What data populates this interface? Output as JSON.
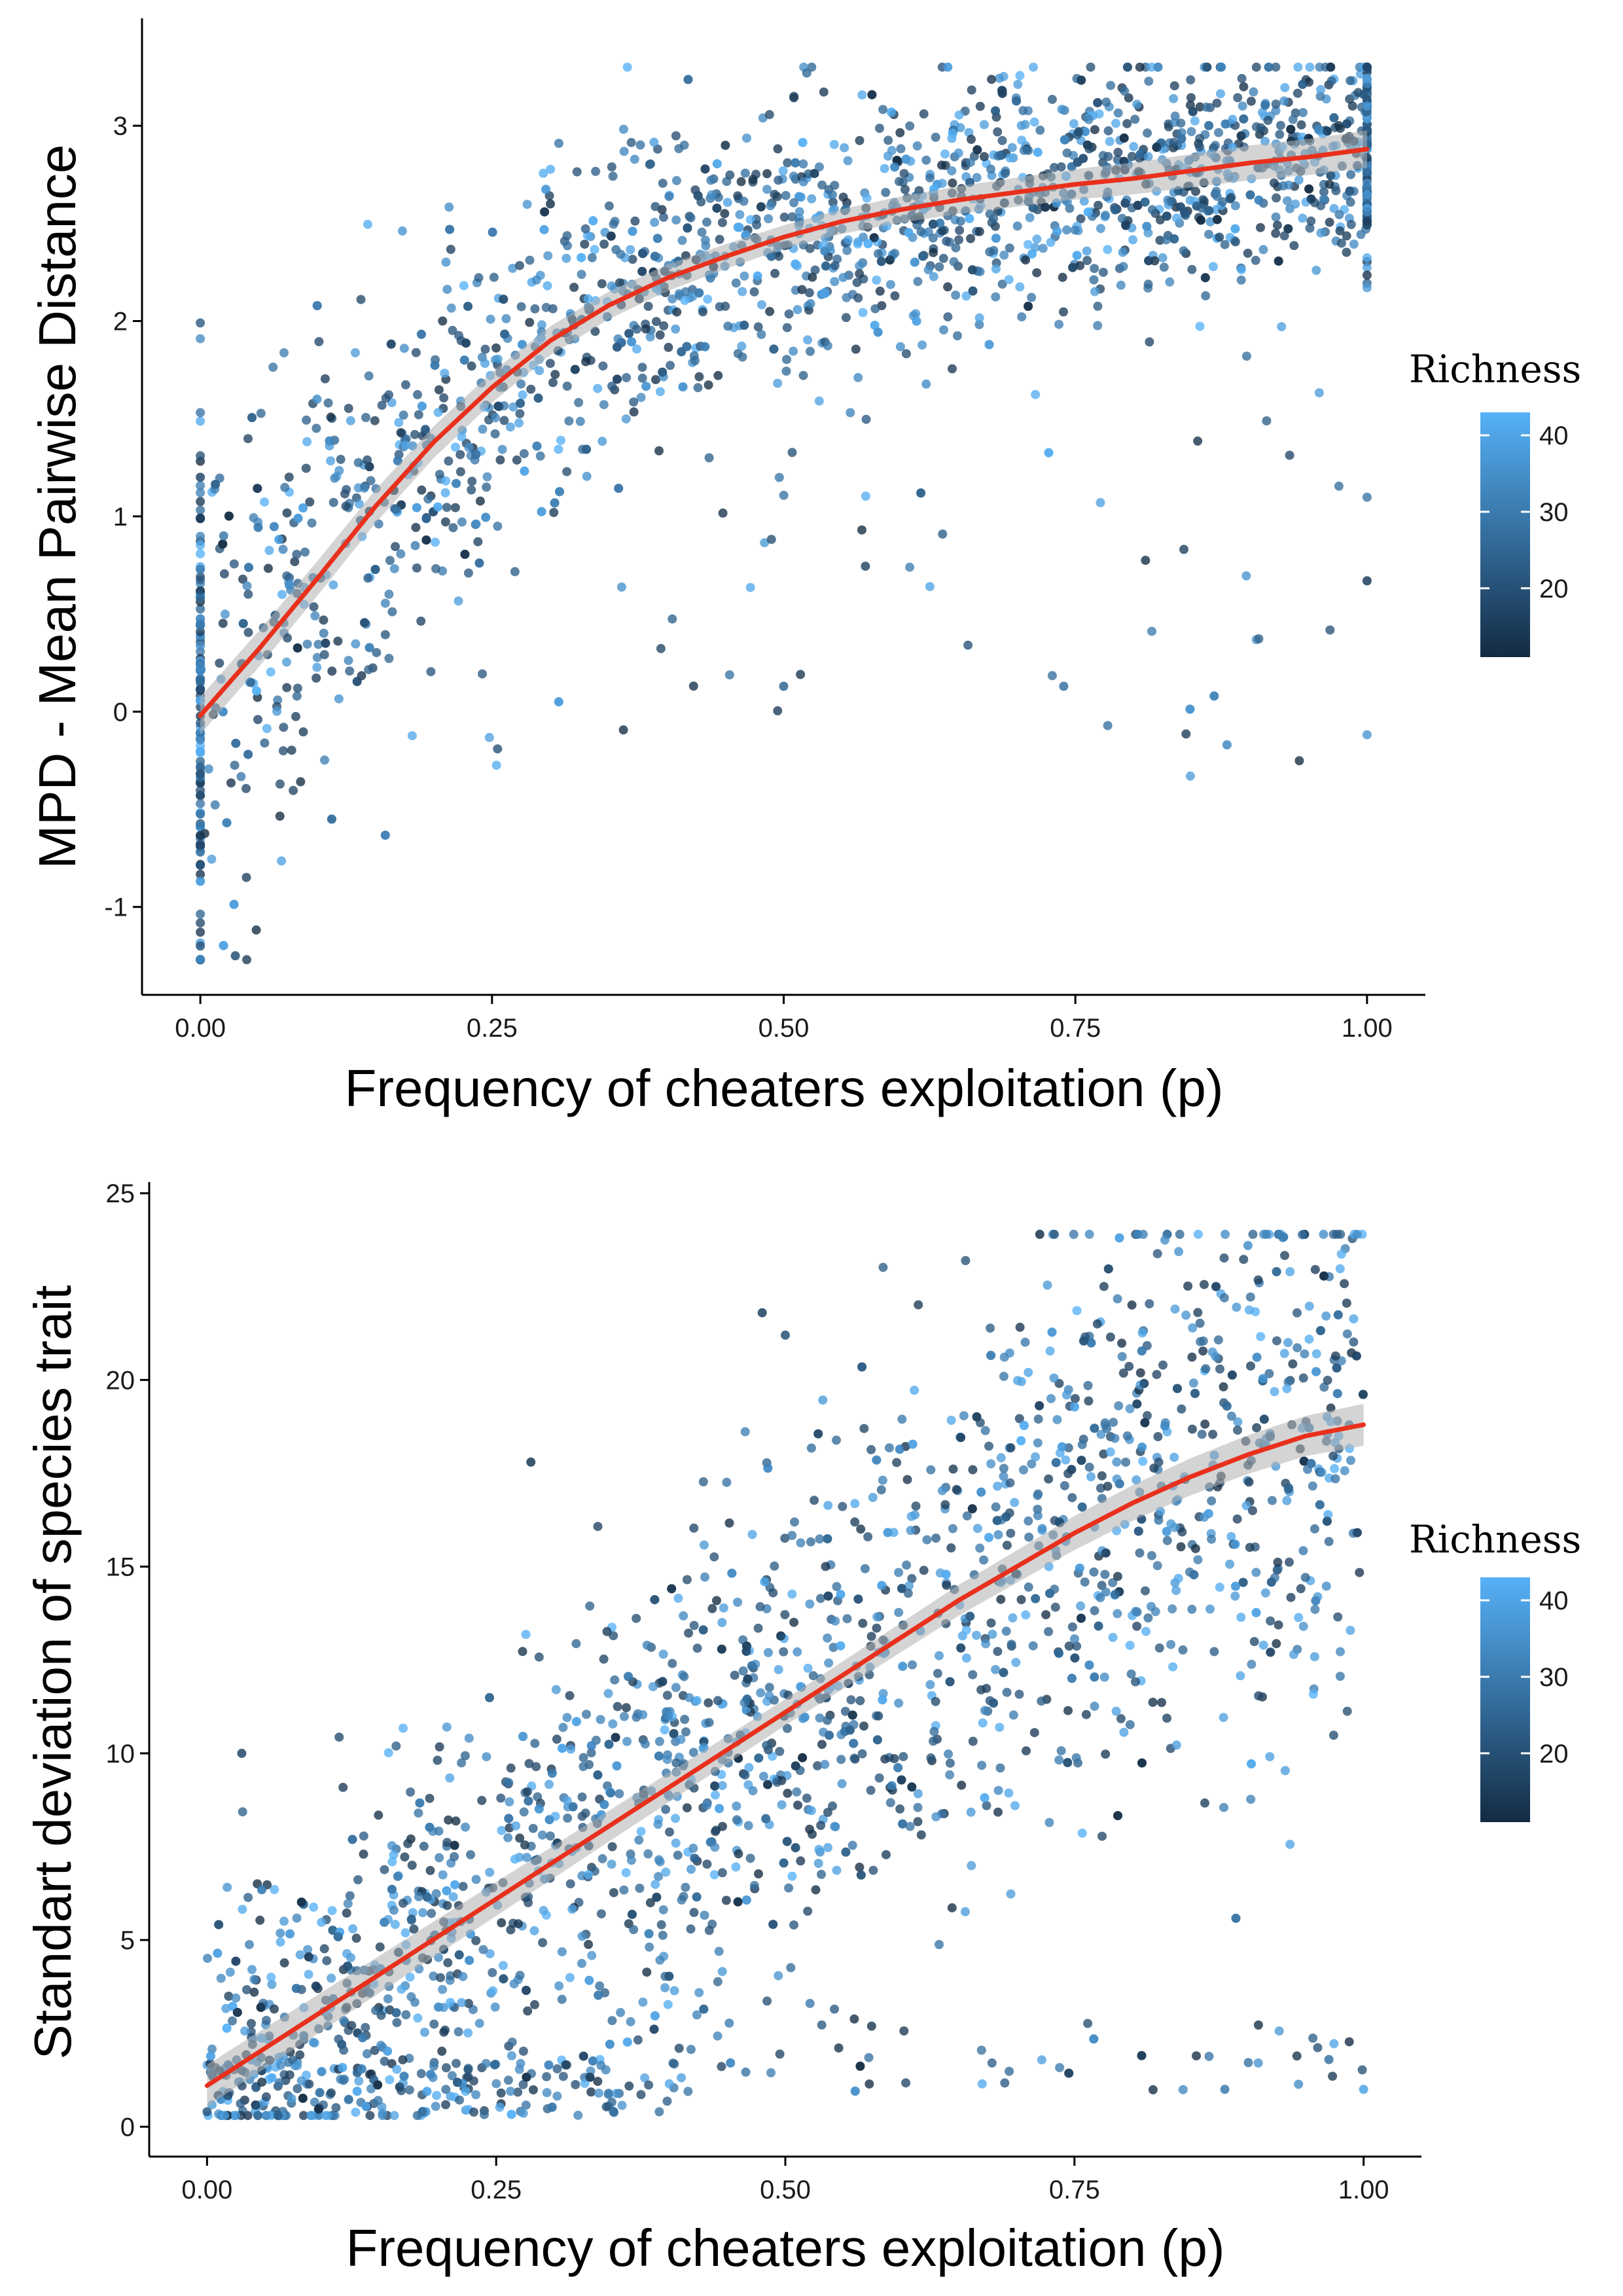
{
  "chart_data": [
    {
      "type": "scatter",
      "xlabel": "Frequency of cheaters exploitation (p)",
      "ylabel": "MPD - Mean Pairwise Distance",
      "xlim": [
        -0.05,
        1.05
      ],
      "ylim": [
        -1.45,
        3.55
      ],
      "x_ticks": [
        "0.00",
        "0.25",
        "0.50",
        "0.75",
        "1.00"
      ],
      "y_ticks": [
        "-1",
        "0",
        "1",
        "2",
        "3"
      ],
      "y_tick_values": [
        -1,
        0,
        1,
        2,
        3
      ],
      "x_tick_values": [
        0,
        0.25,
        0.5,
        0.75,
        1.0
      ],
      "legend": {
        "title": "Richness",
        "labels": [
          "40",
          "30",
          "20"
        ],
        "values": [
          40,
          30,
          20
        ],
        "range": [
          11,
          43
        ],
        "low_color": "#132b43",
        "high_color": "#56b1f7",
        "placement": "right"
      },
      "fit_line": {
        "color": "#e8301c",
        "x": [
          0.0,
          0.05,
          0.1,
          0.15,
          0.2,
          0.25,
          0.3,
          0.35,
          0.4,
          0.45,
          0.5,
          0.55,
          0.6,
          0.65,
          0.7,
          0.75,
          0.8,
          0.85,
          0.9,
          0.95,
          1.0
        ],
        "y": [
          -0.02,
          0.32,
          0.68,
          1.05,
          1.38,
          1.66,
          1.9,
          2.08,
          2.22,
          2.33,
          2.43,
          2.51,
          2.57,
          2.62,
          2.66,
          2.7,
          2.73,
          2.77,
          2.81,
          2.84,
          2.88
        ]
      },
      "points_sample": [
        {
          "x": 0.0,
          "y": -1.2,
          "r": 22
        },
        {
          "x": 0.0,
          "y": 1.2,
          "r": 18
        },
        {
          "x": 0.02,
          "y": 0.9,
          "r": 30
        },
        {
          "x": 0.03,
          "y": -1.25,
          "r": 20
        },
        {
          "x": 0.1,
          "y": 1.6,
          "r": 35
        },
        {
          "x": 0.3,
          "y": 2.6,
          "r": 14
        },
        {
          "x": 0.45,
          "y": 2.9,
          "r": 12
        },
        {
          "x": 0.5,
          "y": 0.13,
          "r": 25
        },
        {
          "x": 0.74,
          "y": 0.13,
          "r": 28
        },
        {
          "x": 0.88,
          "y": -0.17,
          "r": 33
        },
        {
          "x": 1.0,
          "y": 3.3,
          "r": 16
        },
        {
          "x": 1.0,
          "y": 0.67,
          "r": 15
        }
      ]
    },
    {
      "type": "scatter",
      "xlabel": "Frequency of cheaters exploitation (p)",
      "ylabel": "Standart deviation of species trait",
      "xlim": [
        -0.05,
        1.05
      ],
      "ylim": [
        -0.8,
        25.3
      ],
      "x_ticks": [
        "0.00",
        "0.25",
        "0.50",
        "0.75",
        "1.00"
      ],
      "y_ticks": [
        "0",
        "5",
        "10",
        "15",
        "20",
        "25"
      ],
      "y_tick_values": [
        0,
        5,
        10,
        15,
        20,
        25
      ],
      "x_tick_values": [
        0,
        0.25,
        0.5,
        0.75,
        1.0
      ],
      "legend": {
        "title": "Richness",
        "labels": [
          "40",
          "30",
          "20"
        ],
        "values": [
          40,
          30,
          20
        ],
        "range": [
          11,
          43
        ],
        "low_color": "#132b43",
        "high_color": "#56b1f7",
        "placement": "right"
      },
      "fit_line": {
        "color": "#e8301c",
        "x": [
          0.0,
          0.05,
          0.1,
          0.15,
          0.2,
          0.25,
          0.3,
          0.35,
          0.4,
          0.45,
          0.5,
          0.55,
          0.6,
          0.65,
          0.7,
          0.75,
          0.8,
          0.85,
          0.9,
          0.95,
          1.0
        ],
        "y": [
          1.1,
          2.1,
          3.1,
          4.1,
          5.1,
          6.1,
          7.1,
          8.1,
          9.1,
          10.1,
          11.1,
          12.1,
          13.1,
          14.1,
          15.0,
          15.9,
          16.7,
          17.4,
          18.0,
          18.5,
          18.8
        ]
      },
      "points_sample": [
        {
          "x": 0.0,
          "y": 0.4,
          "r": 22
        },
        {
          "x": 0.03,
          "y": 10.0,
          "r": 18
        },
        {
          "x": 0.28,
          "y": 17.8,
          "r": 14
        },
        {
          "x": 0.48,
          "y": 21.8,
          "r": 16
        },
        {
          "x": 0.5,
          "y": 21.2,
          "r": 20
        },
        {
          "x": 0.72,
          "y": 23.9,
          "r": 13
        },
        {
          "x": 0.9,
          "y": 23.6,
          "r": 35
        },
        {
          "x": 0.88,
          "y": 1.0,
          "r": 30
        },
        {
          "x": 1.0,
          "y": 1.0,
          "r": 40
        },
        {
          "x": 0.97,
          "y": 1.8,
          "r": 28
        }
      ]
    }
  ]
}
